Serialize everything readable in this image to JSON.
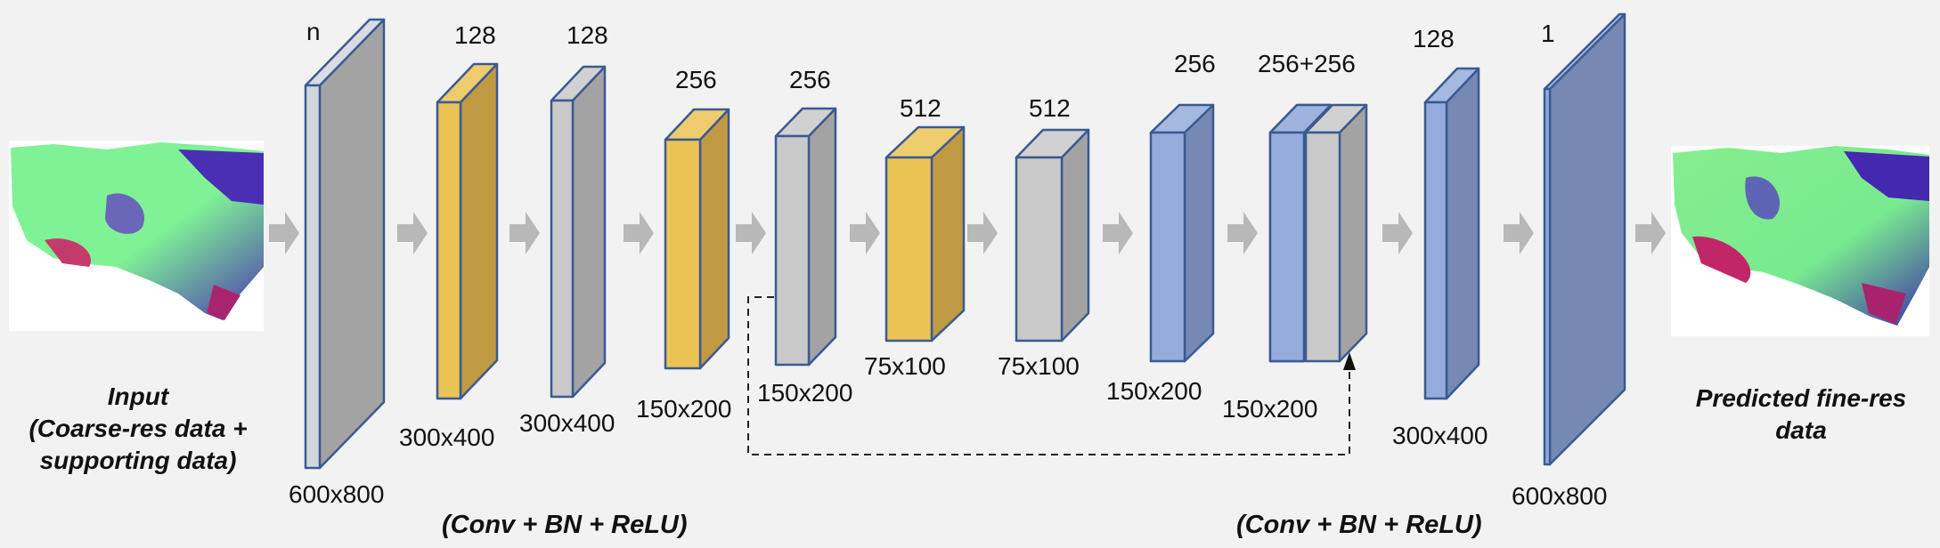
{
  "input": {
    "line1": "Input",
    "line2": "(Coarse-res data +",
    "line3": "supporting data)"
  },
  "output": {
    "line1": "Predicted fine-res",
    "line2": "data"
  },
  "operation_labels": [
    "(Conv + BN + ReLU)",
    "(Conv + BN + ReLU)"
  ],
  "layers": [
    {
      "channels": "n",
      "size": "600x800",
      "color": "gray"
    },
    {
      "channels": "128",
      "size": "300x400",
      "color": "yellow"
    },
    {
      "channels": "128",
      "size": "300x400",
      "color": "lightgray"
    },
    {
      "channels": "256",
      "size": "150x200",
      "color": "yellow"
    },
    {
      "channels": "256",
      "size": "150x200",
      "color": "lightgray"
    },
    {
      "channels": "512",
      "size": "75x100",
      "color": "yellow"
    },
    {
      "channels": "512",
      "size": "75x100",
      "color": "lightgray"
    },
    {
      "channels": "256",
      "size": "150x200",
      "color": "blue"
    },
    {
      "channels": "256+256",
      "size": "150x200",
      "color": "blue+lightgray"
    },
    {
      "channels": "128",
      "size": "300x400",
      "color": "blue"
    },
    {
      "channels": "1",
      "size": "600x800",
      "color": "darkblue"
    }
  ],
  "colors": {
    "gray_front": "#d2d6df",
    "gray_side": "#a3a3a3",
    "yellow_front": "#ebc354",
    "yellow_side": "#c09a43",
    "lightgray_front": "#c9c9c9",
    "lightgray_side": "#a3a3a3",
    "blue_front": "#94abdb",
    "blue_side": "#7589b4",
    "darkblue_side": "#7589b4",
    "outline": "#3a5a92",
    "arrow": "#b8b8b8",
    "map_green": "#7ff296",
    "map_purple": "#5a3fb6",
    "map_red": "#c0296a"
  }
}
